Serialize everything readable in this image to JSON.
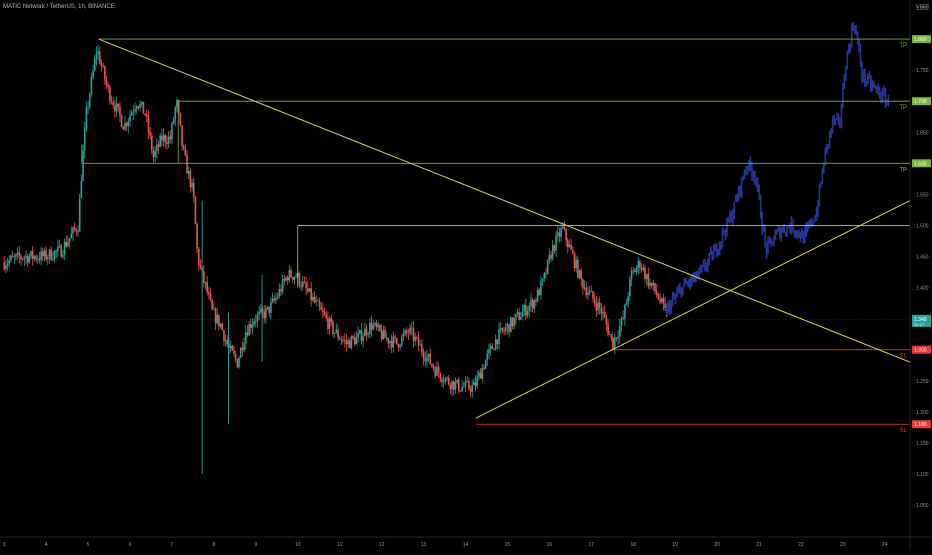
{
  "header": {
    "symbol_line": "MATIC Network / TetherUS, 1h, BINANCE"
  },
  "axis": {
    "currency_label": "USDT"
  },
  "colors": {
    "background": "#000000",
    "candle_up": "#26a69a",
    "candle_down": "#ef5350",
    "projection": "#283593",
    "tp_line": "#7cb342",
    "sl_line": "#e53935",
    "trend_line": "#d4d44a",
    "resistance_line": "#c8c84a",
    "current_price": "#26a69a"
  },
  "chart_data": {
    "type": "candlestick",
    "title": "",
    "yaxis": {
      "min": 1.05,
      "max": 1.85,
      "ticks": [
        "1.850",
        "1.800",
        "1.750",
        "1.700",
        "1.650",
        "1.600",
        "1.550",
        "1.500",
        "1.450",
        "1.400",
        "1.350",
        "1.300",
        "1.250",
        "1.200",
        "1.150",
        "1.100",
        "1.050"
      ]
    },
    "xaxis": {
      "min": 2.9,
      "max": 24.6,
      "ticks": [
        "3",
        "4",
        "5",
        "6",
        "7",
        "8",
        "9",
        "10",
        "11",
        "12",
        "13",
        "14",
        "15",
        "16",
        "17",
        "18",
        "19",
        "20",
        "21",
        "22",
        "23",
        "24"
      ]
    },
    "grid": false,
    "price_path": [
      [
        3.0,
        1.44
      ],
      [
        3.5,
        1.45
      ],
      [
        4.0,
        1.45
      ],
      [
        4.4,
        1.46
      ],
      [
        4.8,
        1.5
      ],
      [
        4.9,
        1.6
      ],
      [
        5.0,
        1.68
      ],
      [
        5.25,
        1.785
      ],
      [
        5.5,
        1.72
      ],
      [
        5.9,
        1.66
      ],
      [
        6.2,
        1.7
      ],
      [
        6.4,
        1.68
      ],
      [
        6.6,
        1.61
      ],
      [
        6.8,
        1.64
      ],
      [
        7.0,
        1.64
      ],
      [
        7.15,
        1.7
      ],
      [
        7.3,
        1.62
      ],
      [
        7.55,
        1.55
      ],
      [
        7.65,
        1.45
      ],
      [
        7.75,
        1.42
      ],
      [
        7.85,
        1.4
      ],
      [
        8.0,
        1.36
      ],
      [
        8.2,
        1.34
      ],
      [
        8.4,
        1.3
      ],
      [
        8.6,
        1.28
      ],
      [
        8.8,
        1.33
      ],
      [
        9.0,
        1.35
      ],
      [
        9.3,
        1.36
      ],
      [
        9.5,
        1.38
      ],
      [
        9.8,
        1.42
      ],
      [
        10.0,
        1.42
      ],
      [
        10.2,
        1.4
      ],
      [
        10.4,
        1.38
      ],
      [
        10.6,
        1.36
      ],
      [
        10.9,
        1.33
      ],
      [
        11.2,
        1.31
      ],
      [
        11.5,
        1.32
      ],
      [
        11.8,
        1.34
      ],
      [
        12.1,
        1.32
      ],
      [
        12.4,
        1.31
      ],
      [
        12.7,
        1.33
      ],
      [
        13.0,
        1.3
      ],
      [
        13.3,
        1.27
      ],
      [
        13.6,
        1.25
      ],
      [
        13.9,
        1.24
      ],
      [
        14.25,
        1.24
      ],
      [
        14.5,
        1.28
      ],
      [
        14.8,
        1.32
      ],
      [
        15.1,
        1.34
      ],
      [
        15.4,
        1.36
      ],
      [
        15.7,
        1.38
      ],
      [
        15.9,
        1.41
      ],
      [
        16.1,
        1.46
      ],
      [
        16.35,
        1.495
      ],
      [
        16.6,
        1.45
      ],
      [
        16.8,
        1.41
      ],
      [
        17.0,
        1.39
      ],
      [
        17.3,
        1.36
      ],
      [
        17.55,
        1.31
      ],
      [
        17.8,
        1.35
      ],
      [
        18.0,
        1.42
      ],
      [
        18.2,
        1.44
      ],
      [
        18.4,
        1.41
      ],
      [
        18.6,
        1.39
      ],
      [
        18.8,
        1.36
      ]
    ],
    "projection_path": [
      [
        18.8,
        1.36
      ],
      [
        19.2,
        1.4
      ],
      [
        19.6,
        1.42
      ],
      [
        20.0,
        1.46
      ],
      [
        20.4,
        1.52
      ],
      [
        20.75,
        1.6
      ],
      [
        20.95,
        1.58
      ],
      [
        21.2,
        1.46
      ],
      [
        21.5,
        1.49
      ],
      [
        21.8,
        1.5
      ],
      [
        22.1,
        1.48
      ],
      [
        22.4,
        1.52
      ],
      [
        22.6,
        1.61
      ],
      [
        22.8,
        1.67
      ],
      [
        22.95,
        1.66
      ],
      [
        23.1,
        1.76
      ],
      [
        23.3,
        1.83
      ],
      [
        23.5,
        1.74
      ],
      [
        23.8,
        1.72
      ],
      [
        24.1,
        1.7
      ]
    ],
    "lines": [
      {
        "kind": "tp",
        "price": 1.8,
        "x_start": 5.25,
        "label": "TP",
        "price_label": "1.800"
      },
      {
        "kind": "tp",
        "price": 1.7,
        "x_start": 7.15,
        "label": "TP",
        "price_label": "1.700"
      },
      {
        "kind": "tp",
        "price": 1.6,
        "x_start": 4.85,
        "label": "TP",
        "price_label": "1.600"
      },
      {
        "kind": "resistance",
        "price": 1.5,
        "x_start": 10.0
      },
      {
        "kind": "sl",
        "price": 1.3,
        "x_start": 17.5,
        "label": "SL",
        "price_label": "1.300"
      },
      {
        "kind": "sl",
        "price": 1.18,
        "x_start": 14.25,
        "label": "SL",
        "price_label": "1.180"
      }
    ],
    "trendlines": [
      {
        "from": [
          5.25,
          1.8
        ],
        "to": [
          24.6,
          1.28
        ]
      },
      {
        "from": [
          14.25,
          1.19
        ],
        "to": [
          24.6,
          1.54
        ]
      }
    ],
    "current_price": {
      "value": 1.348,
      "label": "1.348",
      "countdown": "06:17"
    }
  }
}
